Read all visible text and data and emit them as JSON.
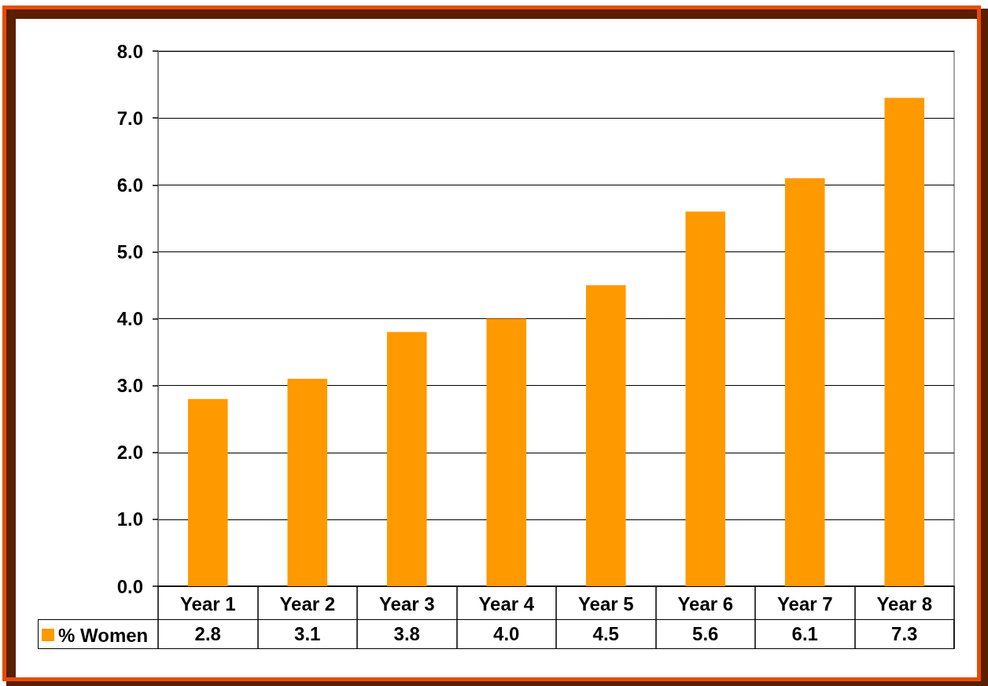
{
  "chart_data": {
    "type": "bar",
    "categories": [
      "Year 1",
      "Year 2",
      "Year 3",
      "Year 4",
      "Year 5",
      "Year 6",
      "Year 7",
      "Year 8"
    ],
    "series": [
      {
        "name": "% Women",
        "color": "#ff9900",
        "values": [
          2.8,
          3.1,
          3.8,
          4.0,
          4.5,
          5.6,
          6.1,
          7.3
        ],
        "value_labels": [
          "2.8",
          "3.1",
          "3.8",
          "4.0",
          "4.5",
          "5.6",
          "6.1",
          "7.3"
        ]
      }
    ],
    "ylim": [
      0,
      8
    ],
    "yticks": [
      {
        "value": 0,
        "label": "0.0"
      },
      {
        "value": 1,
        "label": "1.0"
      },
      {
        "value": 2,
        "label": "2.0"
      },
      {
        "value": 3,
        "label": "3.0"
      },
      {
        "value": 4,
        "label": "4.0"
      },
      {
        "value": 5,
        "label": "5.0"
      },
      {
        "value": 6,
        "label": "6.0"
      },
      {
        "value": 7,
        "label": "7.0"
      },
      {
        "value": 8,
        "label": "8.0"
      }
    ],
    "grid": "y",
    "legend": "bottom left"
  }
}
